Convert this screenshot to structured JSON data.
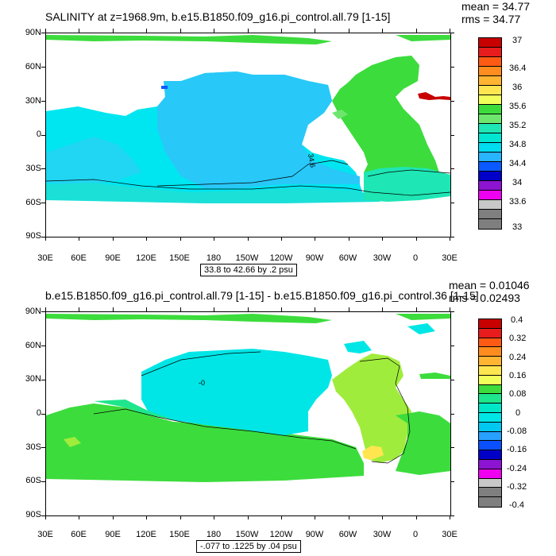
{
  "panel1": {
    "title": "SALINITY at z=1968.9m, b.e15.B1850.f09_g16.pi_control.all.79 [1-15]",
    "mean": "mean = 34.77",
    "rms": "rms = 34.77",
    "lat_labels": [
      "90N",
      "60N",
      "30N",
      "0",
      "30S",
      "60S",
      "90S"
    ],
    "lon_labels": [
      "30E",
      "60E",
      "90E",
      "120E",
      "150E",
      "180",
      "150W",
      "120W",
      "90W",
      "60W",
      "30W",
      "0",
      "30E"
    ],
    "range": "33.8 to 42.66 by .2 psu",
    "contour_label": "34.6",
    "colorbar_labels": [
      "37",
      "36.4",
      "36",
      "35.6",
      "35.2",
      "34.8",
      "34.4",
      "34",
      "33.6",
      "33"
    ],
    "colorbar_colors": [
      "#c80000",
      "#e81c1c",
      "#ff5a14",
      "#ff8c1e",
      "#ffb432",
      "#ffe650",
      "#f0ff5a",
      "#3cdc3c",
      "#6ee66e",
      "#1ee6b4",
      "#00e6d2",
      "#00dcf0",
      "#28b4ff",
      "#0a5aff",
      "#0000c8",
      "#8c14d2",
      "#f000f0",
      "#c8c8c8",
      "#7f7f7f",
      "#7f7f7f"
    ]
  },
  "panel2": {
    "title": "b.e15.B1850.f09_g16.pi_control.all.79 [1-15] - b.e15.B1850.f09_g16.pi_control.36 [1-15]",
    "mean": "mean = 0.01046",
    "rms": "rms = 0.02493",
    "lat_labels": [
      "90N",
      "60N",
      "30N",
      "0",
      "30S",
      "60S",
      "90S"
    ],
    "lon_labels": [
      "30E",
      "60E",
      "90E",
      "120E",
      "150E",
      "180",
      "150W",
      "120W",
      "90W",
      "60W",
      "30W",
      "0",
      "30E"
    ],
    "range": "-.077 to .1225 by .04 psu",
    "contour_label": "-0",
    "colorbar_labels": [
      "0.4",
      "0.32",
      "0.24",
      "0.16",
      "0.08",
      "0",
      "-0.08",
      "-0.16",
      "-0.24",
      "-0.32",
      "-0.4"
    ],
    "colorbar_colors": [
      "#c80000",
      "#e81c1c",
      "#ff5a14",
      "#ff8c1e",
      "#ffb432",
      "#ffe650",
      "#f0ff5a",
      "#3cdc3c",
      "#1ee68c",
      "#00e6c8",
      "#00e6e6",
      "#00c8f0",
      "#28a0ff",
      "#0a50ff",
      "#0000c8",
      "#8c14d2",
      "#f000f0",
      "#c8c8c8",
      "#7f7f7f",
      "#7f7f7f"
    ]
  }
}
